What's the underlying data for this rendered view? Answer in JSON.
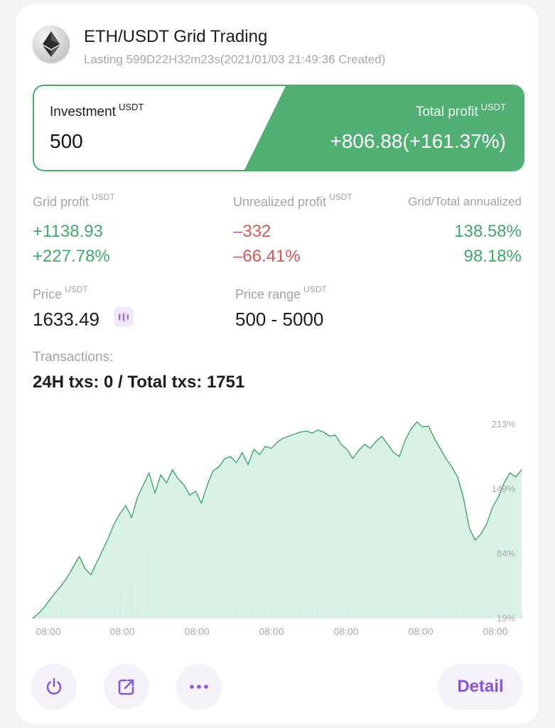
{
  "header": {
    "icon": "ethereum-icon",
    "title": "ETH/USDT Grid Trading",
    "subtitle": "Lasting 599D22H32m23s(2021/01/03 21:49:36 Created)"
  },
  "summary": {
    "investment_label": "Investment",
    "investment_unit": "USDT",
    "investment_value": "500",
    "total_profit_label": "Total profit",
    "total_profit_unit": "USDT",
    "total_profit_value": "+806.88(+161.37%)"
  },
  "stats": {
    "grid_profit": {
      "label": "Grid profit",
      "unit": "USDT",
      "value": "+1138.93",
      "percent": "+227.78%"
    },
    "unrealized_profit": {
      "label": "Unrealized profit",
      "unit": "USDT",
      "value": "–332",
      "percent": "–66.41%"
    },
    "annualized": {
      "label": "Grid/Total annualized",
      "grid": "138.58%",
      "total": "98.18%"
    },
    "price": {
      "label": "Price",
      "unit": "USDT",
      "value": "1633.49"
    },
    "price_range": {
      "label": "Price range",
      "unit": "USDT",
      "value": "500 - 5000"
    },
    "transactions": {
      "label": "Transactions:",
      "value": "24H txs: 0 / Total txs: 1751"
    }
  },
  "colors": {
    "profit_green": "#3eab6b",
    "loss_red": "#d95757",
    "banner_green": "#52af74",
    "accent_purple": "#8a56d8",
    "chart_fill": "#d3f0e0",
    "chart_line": "#3fa56b"
  },
  "chart_data": {
    "type": "area",
    "y_tick_labels": [
      "213%",
      "149%",
      "84%",
      "19%"
    ],
    "ylim": [
      19,
      213
    ],
    "x_tick_labels": [
      "08:00",
      "08:00",
      "08:00",
      "08:00",
      "08:00",
      "08:00",
      "08:00"
    ],
    "grid": false,
    "series": [
      {
        "values": [
          19,
          24,
          30,
          38,
          45,
          52,
          60,
          70,
          80,
          68,
          62,
          74,
          86,
          98,
          112,
          122,
          130,
          118,
          138,
          150,
          162,
          142,
          160,
          152,
          165,
          156,
          150,
          140,
          144,
          132,
          150,
          164,
          168,
          176,
          178,
          172,
          182,
          170,
          185,
          180,
          188,
          186,
          192,
          196,
          198,
          200,
          202,
          203,
          201,
          204,
          202,
          198,
          199,
          190,
          185,
          176,
          184,
          190,
          186,
          193,
          198,
          190,
          182,
          178,
          194,
          205,
          212,
          207,
          208,
          196,
          186,
          176,
          168,
          158,
          138,
          108,
          96,
          102,
          112,
          128,
          138,
          152,
          162,
          158,
          165
        ]
      }
    ],
    "volume_bars": [
      2,
      6,
      4,
      9,
      3,
      12,
      5,
      7,
      3,
      8,
      15,
      4,
      6,
      3,
      10,
      22,
      5,
      30,
      8,
      4,
      60,
      9,
      5,
      3,
      7,
      12,
      4,
      6,
      3,
      9,
      14,
      5,
      7,
      3,
      5,
      8,
      4,
      6,
      11,
      3,
      5,
      9,
      4,
      7,
      3,
      6,
      10,
      4,
      5,
      8,
      3,
      6,
      4,
      9,
      12,
      5,
      3,
      7,
      4,
      6,
      8,
      3,
      5,
      11,
      4,
      6,
      9,
      3,
      5,
      7,
      4,
      13,
      6,
      3,
      8,
      5,
      4,
      10,
      6,
      3,
      7,
      5,
      9,
      4,
      6
    ]
  },
  "actions": {
    "power_icon": "power-icon",
    "share_icon": "share-icon",
    "more_icon": "more-icon",
    "detail_label": "Detail"
  }
}
